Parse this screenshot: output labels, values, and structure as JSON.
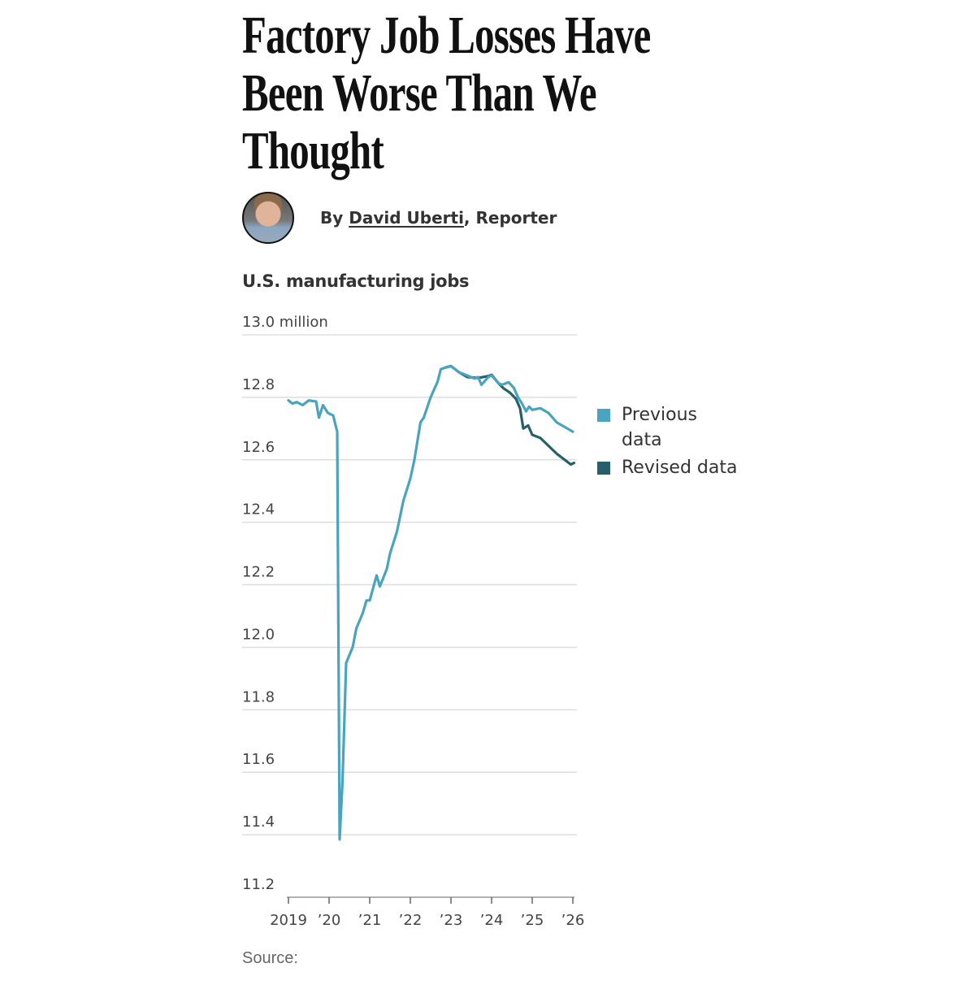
{
  "headline": {
    "lines": [
      "Factory Job Losses Have",
      "Been Worse Than We",
      "Thought"
    ]
  },
  "byline": {
    "prefix": "By ",
    "author": "David Uberti",
    "suffix": ", Reporter"
  },
  "source_label": "Source:",
  "colors": {
    "previous": "#4aa3bf",
    "revised": "#25606b",
    "grid": "#dddddd"
  },
  "chart_data": {
    "type": "line",
    "title": "U.S. manufacturing jobs",
    "ylabel": "",
    "xlabel": "",
    "ylim": [
      11.2,
      13.0
    ],
    "xlim": [
      2019,
      2026
    ],
    "yticks": [
      13.0,
      12.8,
      12.6,
      12.4,
      12.2,
      12.0,
      11.8,
      11.6,
      11.4,
      11.2
    ],
    "ytick_labels": [
      "13.0 million",
      "12.8",
      "12.6",
      "12.4",
      "12.2",
      "12.0",
      "11.8",
      "11.6",
      "11.4",
      "11.2"
    ],
    "xticks": [
      2019,
      2020,
      2021,
      2022,
      2023,
      2024,
      2025,
      2026
    ],
    "xtick_labels": [
      "2019",
      "’20",
      "’21",
      "’22",
      "’23",
      "’24",
      "’25",
      "’26"
    ],
    "legend": {
      "placement": "right",
      "entries": [
        "Previous data",
        "Revised data"
      ]
    },
    "series": [
      {
        "name": "Previous data",
        "points": [
          [
            2019.0,
            12.79
          ],
          [
            2019.1,
            12.78
          ],
          [
            2019.2,
            12.785
          ],
          [
            2019.35,
            12.775
          ],
          [
            2019.5,
            12.79
          ],
          [
            2019.68,
            12.787
          ],
          [
            2019.75,
            12.735
          ],
          [
            2019.85,
            12.775
          ],
          [
            2019.97,
            12.75
          ],
          [
            2020.1,
            12.742
          ],
          [
            2020.2,
            12.69
          ],
          [
            2020.26,
            11.385
          ],
          [
            2020.33,
            11.57
          ],
          [
            2020.42,
            11.95
          ],
          [
            2020.58,
            12.0
          ],
          [
            2020.67,
            12.06
          ],
          [
            2020.83,
            12.11
          ],
          [
            2020.92,
            12.15
          ],
          [
            2021.0,
            12.15
          ],
          [
            2021.17,
            12.23
          ],
          [
            2021.25,
            12.195
          ],
          [
            2021.42,
            12.25
          ],
          [
            2021.5,
            12.3
          ],
          [
            2021.67,
            12.37
          ],
          [
            2021.83,
            12.47
          ],
          [
            2022.0,
            12.54
          ],
          [
            2022.1,
            12.6
          ],
          [
            2022.2,
            12.68
          ],
          [
            2022.25,
            12.72
          ],
          [
            2022.33,
            12.735
          ],
          [
            2022.5,
            12.8
          ],
          [
            2022.67,
            12.85
          ],
          [
            2022.75,
            12.89
          ],
          [
            2022.9,
            12.897
          ],
          [
            2023.0,
            12.9
          ],
          [
            2023.2,
            12.88
          ],
          [
            2023.4,
            12.87
          ],
          [
            2023.58,
            12.86
          ],
          [
            2023.67,
            12.865
          ],
          [
            2023.75,
            12.84
          ],
          [
            2023.92,
            12.865
          ],
          [
            2024.0,
            12.87
          ],
          [
            2024.17,
            12.845
          ],
          [
            2024.25,
            12.84
          ],
          [
            2024.42,
            12.848
          ],
          [
            2024.55,
            12.83
          ],
          [
            2024.65,
            12.8
          ],
          [
            2024.75,
            12.78
          ],
          [
            2024.85,
            12.755
          ],
          [
            2024.92,
            12.77
          ],
          [
            2025.0,
            12.76
          ],
          [
            2025.2,
            12.765
          ],
          [
            2025.4,
            12.75
          ],
          [
            2025.6,
            12.72
          ],
          [
            2025.8,
            12.705
          ],
          [
            2026.0,
            12.69
          ]
        ]
      },
      {
        "name": "Revised data",
        "points": [
          [
            2022.85,
            12.895
          ],
          [
            2023.0,
            12.9
          ],
          [
            2023.2,
            12.88
          ],
          [
            2023.4,
            12.865
          ],
          [
            2023.67,
            12.862
          ],
          [
            2023.92,
            12.868
          ],
          [
            2024.0,
            12.872
          ],
          [
            2024.17,
            12.845
          ],
          [
            2024.3,
            12.828
          ],
          [
            2024.45,
            12.815
          ],
          [
            2024.6,
            12.795
          ],
          [
            2024.7,
            12.765
          ],
          [
            2024.78,
            12.7
          ],
          [
            2024.9,
            12.71
          ],
          [
            2025.0,
            12.68
          ],
          [
            2025.2,
            12.67
          ],
          [
            2025.4,
            12.645
          ],
          [
            2025.6,
            12.62
          ],
          [
            2025.8,
            12.6
          ],
          [
            2025.95,
            12.585
          ],
          [
            2026.03,
            12.59
          ]
        ]
      }
    ]
  }
}
